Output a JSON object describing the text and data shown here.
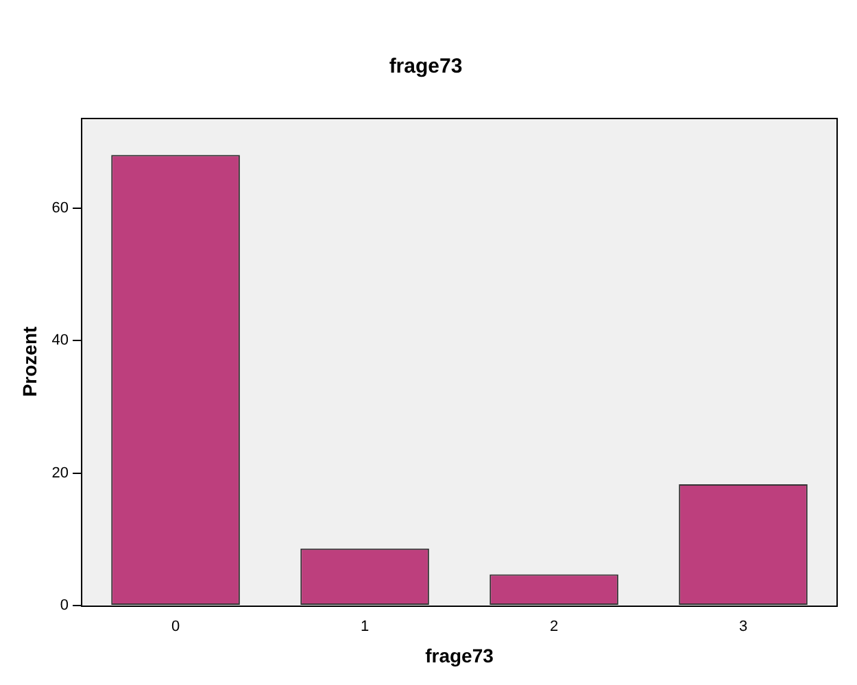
{
  "chart_data": {
    "type": "bar",
    "title": "frage73",
    "xlabel": "frage73",
    "ylabel": "Prozent",
    "categories": [
      "0",
      "1",
      "2",
      "3"
    ],
    "values": [
      68.0,
      8.6,
      4.7,
      18.3
    ],
    "color": "#bd3f7d",
    "ylim": [
      0,
      73.6
    ],
    "yticks": [
      0,
      20,
      40,
      60
    ],
    "grid": false,
    "legend": false
  }
}
